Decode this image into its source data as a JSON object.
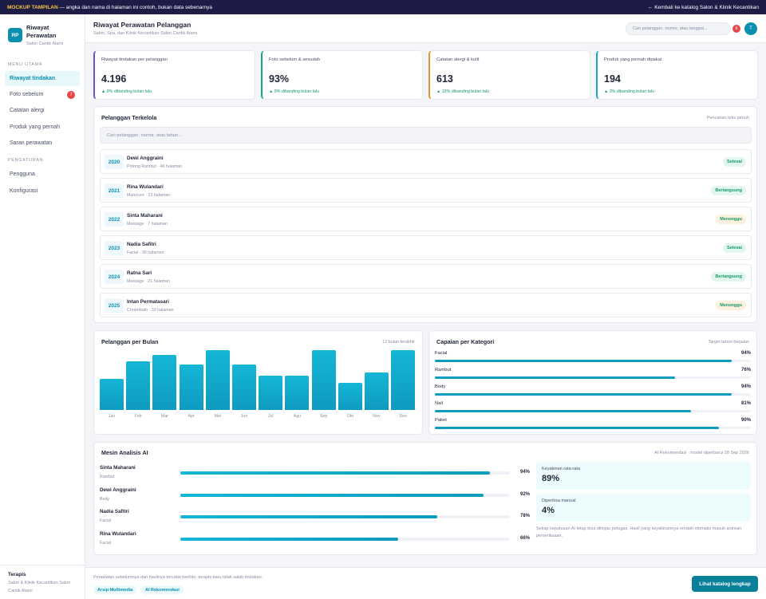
{
  "topbar": {
    "tag": "MOCKUP TAMPILAN",
    "notice": "— angka dan nama di halaman ini contoh, bukan data sebenarnya",
    "back_link": "← Kembali ke katalog Salon & Klinik Kecantikan"
  },
  "brand": {
    "logo": "RP",
    "title": "Riwayat Perawatan",
    "subtitle": "Salon Cantik Alami"
  },
  "sidebar": {
    "section_main": "MENU UTAMA",
    "items": [
      {
        "label": "Riwayat tindakan",
        "active": true
      },
      {
        "label": "Foto sebelum",
        "badge": "7"
      },
      {
        "label": "Catatan alergi"
      },
      {
        "label": "Produk yang pernah"
      },
      {
        "label": "Saran perawatan"
      }
    ],
    "section_settings": "PENGATURAN",
    "settings_items": [
      {
        "label": "Pengguna"
      },
      {
        "label": "Konfigurasi"
      }
    ],
    "footer_title": "Terapis",
    "footer_sub": "Salon & Klinik Kecantikan Salon Cantik Alami"
  },
  "header": {
    "title": "Riwayat Perawatan Pelanggan",
    "subtitle": "Salon, Spa, dan Klinik Kecantikan Salon Cantik Alami",
    "search_placeholder": "Cari pelanggan, nomor, atau tanggal...",
    "notif_count": "6",
    "avatar": "T"
  },
  "stats": [
    {
      "label": "Riwayat tindakan per pelanggan",
      "value": "4.196",
      "delta": "▲ 9% dibanding bulan lalu",
      "accent": "#6c4fd8"
    },
    {
      "label": "Foto sebelum & sesudah",
      "value": "93%",
      "delta": "▲ 9% dibanding bulan lalu",
      "accent": "#1aa68a"
    },
    {
      "label": "Catatan alergi & kulit",
      "value": "613",
      "delta": "▲ 13% dibanding bulan lalu",
      "accent": "#e0962c"
    },
    {
      "label": "Produk yang pernah dipakai",
      "value": "194",
      "delta": "▲ 3% dibanding bulan lalu",
      "accent": "#17a7c4"
    }
  ],
  "customers": {
    "title": "Pelanggan Terkelola",
    "note": "Pencarian teks penuh",
    "search_placeholder": "Cari pelanggan, nomor, atau tahun...",
    "rows": [
      {
        "year": "2020",
        "name": "Dewi Anggraini",
        "meta": "Potong Rambut · 46 halaman",
        "status": "Selesai",
        "kind": "done"
      },
      {
        "year": "2021",
        "name": "Rina Wulandari",
        "meta": "Manicure · 23 halaman",
        "status": "Berlangsung",
        "kind": "done"
      },
      {
        "year": "2022",
        "name": "Sinta Maharani",
        "meta": "Massage · 7 halaman",
        "status": "Menunggu",
        "kind": "wait"
      },
      {
        "year": "2023",
        "name": "Nadia Safitri",
        "meta": "Facial · 30 halaman",
        "status": "Selesai",
        "kind": "done"
      },
      {
        "year": "2024",
        "name": "Ratna Sari",
        "meta": "Massage · 21 halaman",
        "status": "Berlangsung",
        "kind": "done"
      },
      {
        "year": "2025",
        "name": "Intan Permatasari",
        "meta": "Creambath · 33 halaman",
        "status": "Menunggu",
        "kind": "wait"
      }
    ]
  },
  "chart_data": [
    {
      "type": "bar",
      "title": "Pelanggan per Bulan",
      "note": "12 bulan terakhir",
      "categories": [
        "Jan",
        "Feb",
        "Mar",
        "Apr",
        "Mei",
        "Jun",
        "Jul",
        "Agu",
        "Sep",
        "Okt",
        "Nov",
        "Des"
      ],
      "values": [
        52,
        82,
        92,
        76,
        100,
        76,
        57,
        57,
        100,
        46,
        63,
        100
      ],
      "ylim": [
        0,
        100
      ]
    },
    {
      "type": "bar",
      "title": "Capaian per Kategori",
      "note": "Target tahun berjalan",
      "categories": [
        "Facial",
        "Rambut",
        "Body",
        "Nail",
        "Paket"
      ],
      "values": [
        94,
        76,
        94,
        81,
        90
      ],
      "labels": [
        "94%",
        "76%",
        "94%",
        "81%",
        "90%"
      ],
      "ylim": [
        0,
        100
      ]
    },
    {
      "type": "bar",
      "title": "Mesin Analisis AI",
      "note": "AI Rekomendasi · model diperbarui 28 Sep 2026",
      "categories": [
        "Sinta Maharani",
        "Dewi Anggraini",
        "Nadia Safitri",
        "Rina Wulandari"
      ],
      "subcategories": [
        "Rambut",
        "Body",
        "Facial",
        "Facial"
      ],
      "values": [
        94,
        92,
        78,
        66
      ],
      "labels": [
        "94%",
        "92%",
        "78%",
        "66%"
      ],
      "ylim": [
        0,
        100
      ]
    }
  ],
  "ai": {
    "confidence_label": "Keyakinan rata-rata",
    "confidence_value": "89%",
    "manual_label": "Diperiksa manual",
    "manual_value": "4%",
    "note": "Setiap keputusan AI tetap bisa ditinjau petugas. Hasil yang keyakinannya rendah otomatis masuk antrean pemeriksaan."
  },
  "footer": {
    "text": "Perawatan sebelumnya dan hasilnya tercatat berfoto, terapis baru tidak salah tindakan.",
    "chip1": "Arsip Multimedia",
    "chip2": "AI Rekomendasi",
    "button": "Lihat katalog lengkap"
  }
}
